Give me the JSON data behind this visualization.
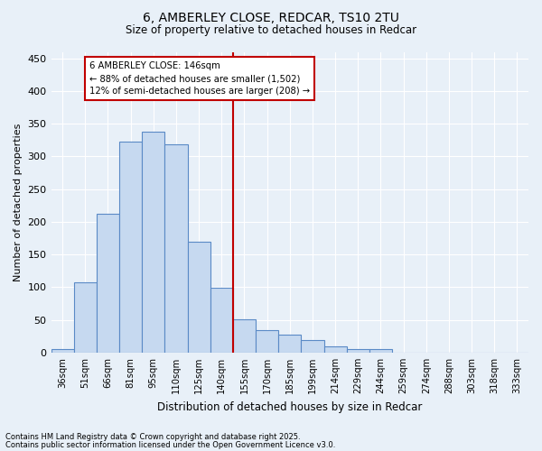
{
  "title1": "6, AMBERLEY CLOSE, REDCAR, TS10 2TU",
  "title2": "Size of property relative to detached houses in Redcar",
  "xlabel": "Distribution of detached houses by size in Redcar",
  "ylabel": "Number of detached properties",
  "categories": [
    "36sqm",
    "51sqm",
    "66sqm",
    "81sqm",
    "95sqm",
    "110sqm",
    "125sqm",
    "140sqm",
    "155sqm",
    "170sqm",
    "185sqm",
    "199sqm",
    "214sqm",
    "229sqm",
    "244sqm",
    "259sqm",
    "274sqm",
    "288sqm",
    "303sqm",
    "318sqm",
    "333sqm"
  ],
  "values": [
    5,
    107,
    213,
    323,
    338,
    318,
    170,
    99,
    51,
    35,
    27,
    19,
    10,
    5,
    5,
    0,
    0,
    0,
    0,
    0,
    0
  ],
  "bar_color": "#c6d9f0",
  "bar_edge_color": "#5a8ac6",
  "bar_edge_width": 0.8,
  "vline_color": "#c00000",
  "annotation_text": "6 AMBERLEY CLOSE: 146sqm\n← 88% of detached houses are smaller (1,502)\n12% of semi-detached houses are larger (208) →",
  "annotation_box_color": "#ffffff",
  "annotation_box_edge": "#c00000",
  "bg_color": "#e8f0f8",
  "grid_color": "#ffffff",
  "ylim": [
    0,
    460
  ],
  "yticks": [
    0,
    50,
    100,
    150,
    200,
    250,
    300,
    350,
    400,
    450
  ],
  "footnote1": "Contains HM Land Registry data © Crown copyright and database right 2025.",
  "footnote2": "Contains public sector information licensed under the Open Government Licence v3.0."
}
